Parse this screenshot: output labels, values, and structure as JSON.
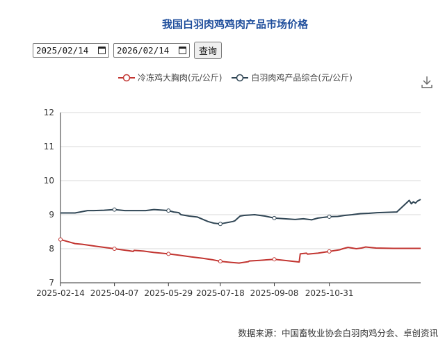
{
  "title": "我国白羽肉鸡鸡肉产品市场价格",
  "controls": {
    "start_date": "2025/02/14",
    "end_date": "2026/02/14",
    "query_label": "查询"
  },
  "source_note": "数据来源：中国畜牧业协会白羽肉鸡分会、卓创资讯",
  "icons": {
    "download": "download-icon",
    "calendar": "calendar-icon"
  },
  "chart_data": {
    "type": "line",
    "title": "我国白羽肉鸡鸡肉产品市场价格",
    "xlabel": "",
    "ylabel": "",
    "ylim": [
      7,
      12
    ],
    "yticks": [
      7,
      8,
      9,
      10,
      11,
      12
    ],
    "xlim": [
      "2025-02-14",
      "2026-01-27"
    ],
    "xtick_labels": [
      "2025-02-14",
      "2025-04-07",
      "2025-05-29",
      "2025-07-18",
      "2025-09-08",
      "2025-10-31"
    ],
    "grid": true,
    "legend_position": "top",
    "series": [
      {
        "name": "冷冻鸡大胸肉(元/公斤)",
        "color": "#c23531",
        "x": [
          "2025-02-14",
          "2025-02-21",
          "2025-02-28",
          "2025-03-07",
          "2025-03-14",
          "2025-03-21",
          "2025-03-28",
          "2025-04-07",
          "2025-04-14",
          "2025-04-21",
          "2025-04-25",
          "2025-04-26",
          "2025-05-05",
          "2025-05-15",
          "2025-05-29",
          "2025-06-08",
          "2025-06-20",
          "2025-07-01",
          "2025-07-10",
          "2025-07-18",
          "2025-07-28",
          "2025-08-05",
          "2025-08-14",
          "2025-08-15",
          "2025-08-25",
          "2025-09-08",
          "2025-09-20",
          "2025-10-02",
          "2025-10-03",
          "2025-10-09",
          "2025-10-10",
          "2025-10-20",
          "2025-10-31",
          "2025-11-10",
          "2025-11-13",
          "2025-11-18",
          "2025-11-26",
          "2025-12-01",
          "2025-12-05",
          "2025-12-15",
          "2026-01-01",
          "2026-01-27"
        ],
        "values": [
          8.27,
          8.21,
          8.15,
          8.13,
          8.1,
          8.07,
          8.04,
          8.0,
          7.97,
          7.94,
          7.92,
          7.95,
          7.93,
          7.89,
          7.85,
          7.81,
          7.76,
          7.72,
          7.68,
          7.63,
          7.6,
          7.58,
          7.62,
          7.64,
          7.66,
          7.69,
          7.65,
          7.61,
          7.85,
          7.87,
          7.84,
          7.87,
          7.92,
          7.97,
          8.0,
          8.04,
          8.0,
          8.02,
          8.05,
          8.02,
          8.01,
          8.01
        ],
        "markers": [
          "2025-02-14",
          "2025-04-07",
          "2025-05-29",
          "2025-07-18",
          "2025-09-08",
          "2025-10-31"
        ]
      },
      {
        "name": "白羽肉鸡产品综合(元/公斤)",
        "color": "#2f4554",
        "x": [
          "2025-02-14",
          "2025-02-21",
          "2025-02-28",
          "2025-03-05",
          "2025-03-12",
          "2025-03-18",
          "2025-03-28",
          "2025-04-07",
          "2025-04-17",
          "2025-04-29",
          "2025-05-07",
          "2025-05-15",
          "2025-05-25",
          "2025-05-29",
          "2025-06-03",
          "2025-06-08",
          "2025-06-10",
          "2025-06-18",
          "2025-06-26",
          "2025-07-06",
          "2025-07-12",
          "2025-07-18",
          "2025-07-23",
          "2025-07-30",
          "2025-08-01",
          "2025-08-06",
          "2025-08-10",
          "2025-08-20",
          "2025-08-30",
          "2025-09-08",
          "2025-09-18",
          "2025-09-28",
          "2025-10-06",
          "2025-10-14",
          "2025-10-20",
          "2025-10-31",
          "2025-11-08",
          "2025-11-15",
          "2025-11-22",
          "2025-11-30",
          "2025-12-08",
          "2025-12-16",
          "2026-01-04",
          "2026-01-16",
          "2026-01-18",
          "2026-01-20",
          "2026-01-22",
          "2026-01-24",
          "2026-01-27"
        ],
        "values": [
          9.05,
          9.05,
          9.05,
          9.08,
          9.12,
          9.12,
          9.13,
          9.15,
          9.12,
          9.12,
          9.12,
          9.15,
          9.13,
          9.12,
          9.08,
          9.06,
          9.0,
          8.96,
          8.93,
          8.8,
          8.75,
          8.73,
          8.76,
          8.8,
          8.82,
          8.96,
          8.98,
          9.0,
          8.96,
          8.9,
          8.88,
          8.86,
          8.88,
          8.85,
          8.9,
          8.94,
          8.95,
          8.98,
          9.0,
          9.03,
          9.04,
          9.06,
          9.08,
          9.42,
          9.32,
          9.38,
          9.34,
          9.4,
          9.45
        ],
        "markers": [
          "2025-04-07",
          "2025-05-29",
          "2025-07-18",
          "2025-09-08",
          "2025-10-31"
        ]
      }
    ]
  }
}
